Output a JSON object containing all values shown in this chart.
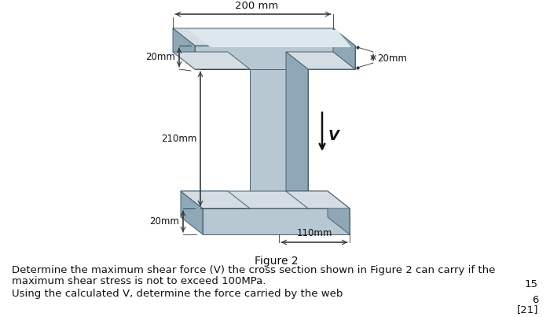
{
  "bg_color": "#ffffff",
  "fig_caption": "Figure 2",
  "text_lines": [
    "Determine the maximum shear force (V) the cross section shown in Figure 2 can carry if the",
    "maximum shear stress is not to exceed 100MPa."
  ],
  "text_line2": "Using the calculated V, determine the force carried by the web",
  "marks1": "15",
  "marks2": "6",
  "marks3": "[21]",
  "label_200mm": "200 mm",
  "label_20mm_top": "20mm",
  "label_20mm_right": "20mm",
  "label_210mm": "210mm",
  "label_20mm_bot": "20mm",
  "label_110mm": "110mm",
  "label_V": "V",
  "font_size_body": 9.5,
  "font_size_caption": 10,
  "font_size_marks": 9.5,
  "font_size_dim": 8.5,
  "c_top_face": "#d4dde3",
  "c_front_face": "#b8c8d2",
  "c_side_face": "#8fa8b8",
  "c_dark_edge": "#4a6070",
  "c_dim_line": "#333333"
}
